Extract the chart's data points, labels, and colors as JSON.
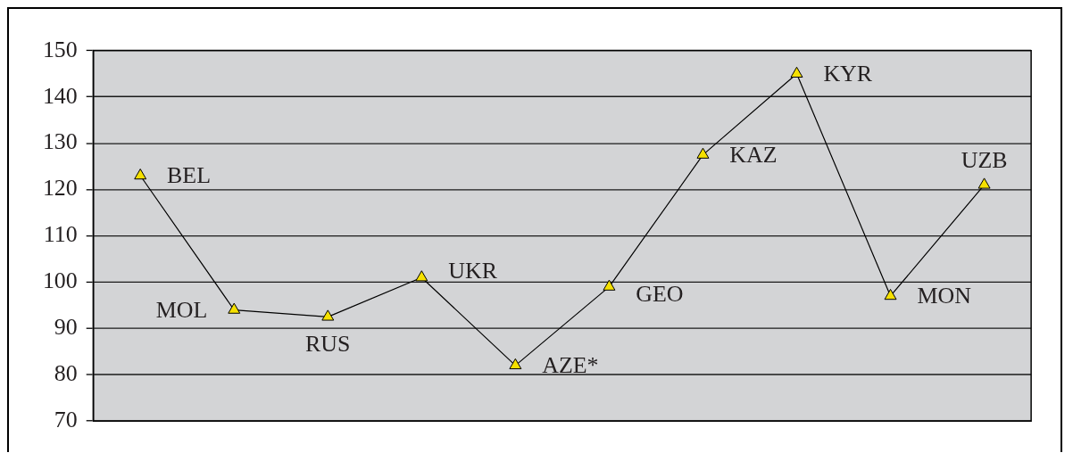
{
  "chart_data": {
    "type": "line",
    "categories": [
      null,
      null,
      null,
      null,
      null,
      null,
      null,
      null,
      null,
      null
    ],
    "values": [
      123,
      94,
      92.5,
      101,
      82,
      99,
      127.5,
      145,
      97,
      121
    ],
    "value_labels": [
      "BEL",
      "MOL",
      "RUS",
      "UKR",
      "AZE*",
      "GEO",
      "KAZ",
      "KYR",
      "MON",
      "UZB"
    ],
    "color": "#000000",
    "colors": [
      "#f5e000",
      "#f5e000",
      "#f5e000",
      "#f5e000",
      "#f5e000",
      "#f5e000",
      "#f5e000",
      "#f5e000",
      "#f5e000",
      "#f5e000"
    ],
    "marker": "triangle",
    "ylim": [
      70,
      150
    ],
    "yticks": [
      70,
      80,
      90,
      100,
      110,
      120,
      130,
      140,
      150
    ],
    "grid": "y",
    "tick_labels": "y"
  }
}
